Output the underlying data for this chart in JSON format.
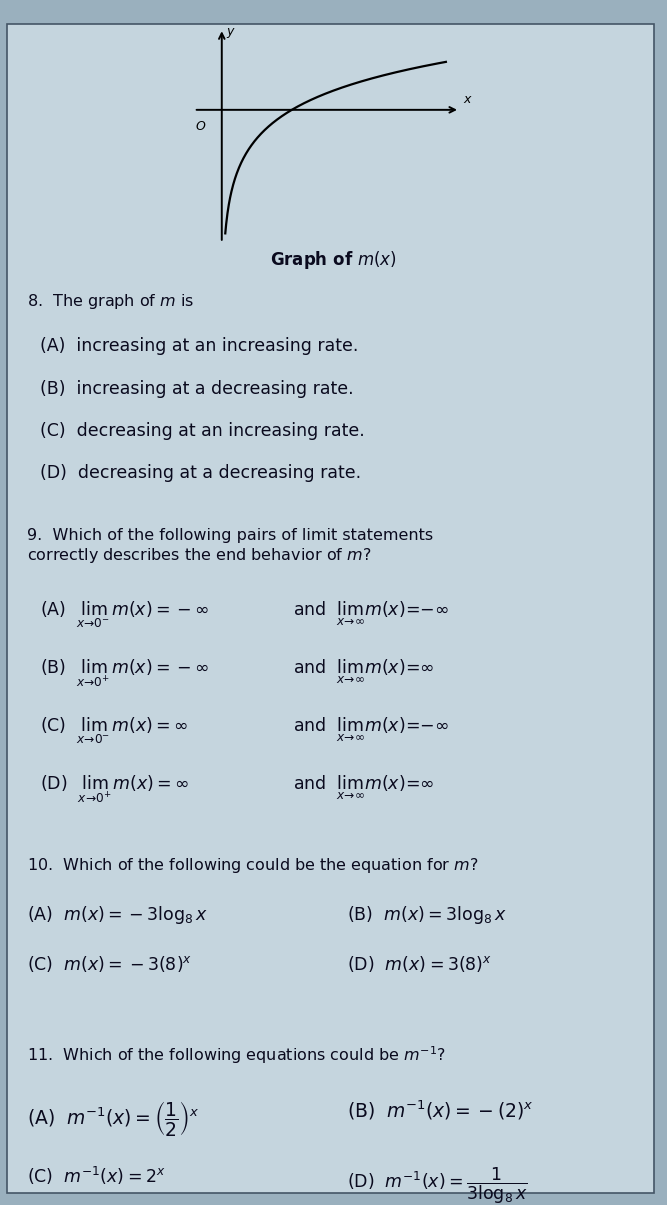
{
  "bg_color": "#9ab0be",
  "page_bg": "#c5d5de",
  "text_color": "#111122",
  "dark_text": "#0a0a1e",
  "title": "Graph of $m(x)$",
  "graph_title_fontsize": 12,
  "q8_header": "8.  The graph of $m$ is",
  "q8_options": [
    "(A)  increasing at an increasing rate.",
    "(B)  increasing at a decreasing rate.",
    "(C)  decreasing at an increasing rate.",
    "(D)  decreasing at a decreasing rate."
  ],
  "q9_header": "9.  Which of the following pairs of limit statements\ncorrectly describes the end behavior of $m$?",
  "q9_A_left": "(A)  $\\lim_{x\\to 0^-} m(x)=-\\infty$",
  "q9_A_right": "and  $\\lim_{x\\to \\infty} m(x)=-\\infty$",
  "q9_B_left": "(B)  $\\lim_{x\\to 0^+} m(x)=-\\infty$",
  "q9_B_right": "and  $\\lim_{x\\to \\infty} m(x)=\\infty$",
  "q9_C_left": "(C)  $\\lim_{x\\to 0^-} m(x)=\\infty$",
  "q9_C_right": "and  $\\lim_{x\\to \\infty} m(x)=-\\infty$",
  "q9_D_left": "(D)  $\\lim_{x\\to 0^+} m(x)=\\infty$",
  "q9_D_right": "and  $\\lim_{x\\to \\infty} m(x)=\\infty$",
  "q10_header": "10.  Which of the following could be the equation for $m$?",
  "q10_A": "(A)  $m(x)=-3\\log_8 x$",
  "q10_B": "(B)  $m(x)=3\\log_8 x$",
  "q10_C": "(C)  $m(x)=-3(8)^x$",
  "q10_D": "(D)  $m(x)=3(8)^x$",
  "q11_header": "11.  Which of the following equations could be $m^{-1}$?",
  "q11_A": "(A)  $m^{-1}(x)=\\left(\\dfrac{1}{2}\\right)^x$",
  "q11_B": "(B)  $m^{-1}(x)=-(2)^x$",
  "q11_C": "(C)  $m^{-1}(x)=2^x$",
  "q11_D": "(D)  $m^{-1}(x)=\\dfrac{1}{3\\log_8 x}$",
  "body_fs": 11.5,
  "opt_fs": 12.5
}
